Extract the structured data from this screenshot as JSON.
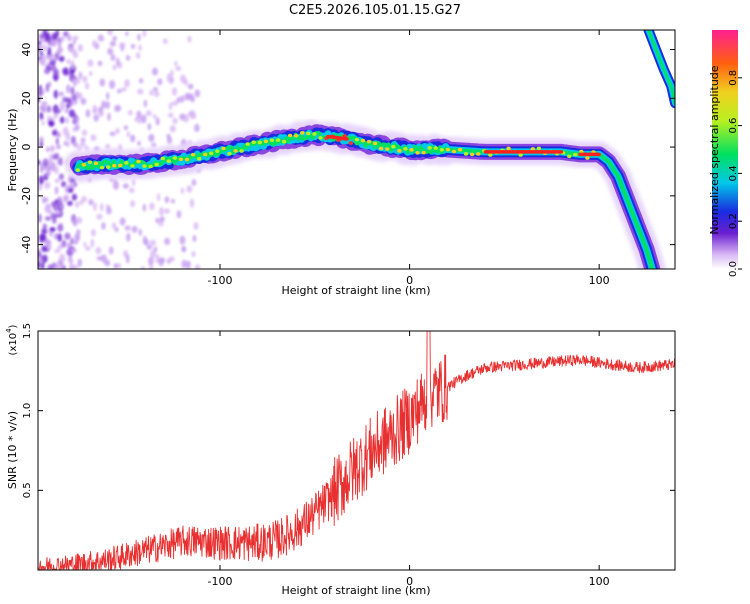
{
  "title": "C2E5.2026.105.01.15.G27",
  "chart_data": [
    {
      "type": "heatmap",
      "title": "C2E5.2026.105.01.15.G27",
      "xlabel": "Height of straight line (km)",
      "ylabel": "Frequency (Hz)",
      "xlim": [
        -196,
        140
      ],
      "ylim": [
        -50,
        48
      ],
      "x_ticks": [
        -100,
        0,
        100
      ],
      "y_ticks": [
        -40,
        -20,
        0,
        20,
        40
      ],
      "colorbar": {
        "label": "Normalized spectral amplitude",
        "range": [
          0,
          1
        ],
        "ticks": [
          "0.0",
          "0.2",
          "0.4",
          "0.6",
          "0.8"
        ]
      },
      "ridge": {
        "x": [
          -175,
          -160,
          -140,
          -120,
          -100,
          -80,
          -60,
          -50,
          -40,
          -30,
          -20,
          -10,
          0,
          20,
          40,
          60,
          80,
          90,
          100,
          105,
          110,
          115,
          120,
          125,
          128
        ],
        "y": [
          -8,
          -7,
          -7,
          -5,
          -2,
          1,
          4,
          5,
          4,
          3,
          1,
          0,
          -1,
          -1,
          -2,
          -2,
          -2,
          -3,
          -3,
          -6,
          -12,
          -22,
          -32,
          -42,
          -50
        ]
      },
      "upper_branch": {
        "x": [
          126,
          130,
          134,
          138,
          140
        ],
        "y": [
          48,
          40,
          32,
          25,
          18
        ]
      }
    },
    {
      "type": "line",
      "xlabel": "Height of straight line (km)",
      "ylabel": "SNR (10 * v/v)",
      "y_scale_label": "(x10",
      "y_scale_exponent": "4",
      "xlim": [
        -196,
        140
      ],
      "ylim": [
        0,
        1.5
      ],
      "x_ticks": [
        -100,
        0,
        100
      ],
      "y_ticks": [
        "0.5",
        "1.0",
        "1.5"
      ],
      "color": "#e83030",
      "x": [
        -196,
        -180,
        -160,
        -140,
        -130,
        -120,
        -110,
        -100,
        -90,
        -80,
        -70,
        -60,
        -50,
        -40,
        -30,
        -20,
        -10,
        0,
        5,
        10,
        15,
        20,
        30,
        40,
        60,
        80,
        90,
        100,
        120,
        140
      ],
      "y": [
        0.02,
        0.03,
        0.06,
        0.12,
        0.15,
        0.18,
        0.18,
        0.17,
        0.17,
        0.17,
        0.19,
        0.25,
        0.35,
        0.48,
        0.62,
        0.75,
        0.84,
        0.95,
        1.02,
        1.1,
        1.12,
        1.15,
        1.22,
        1.27,
        1.29,
        1.31,
        1.32,
        1.3,
        1.27,
        1.29
      ]
    }
  ]
}
